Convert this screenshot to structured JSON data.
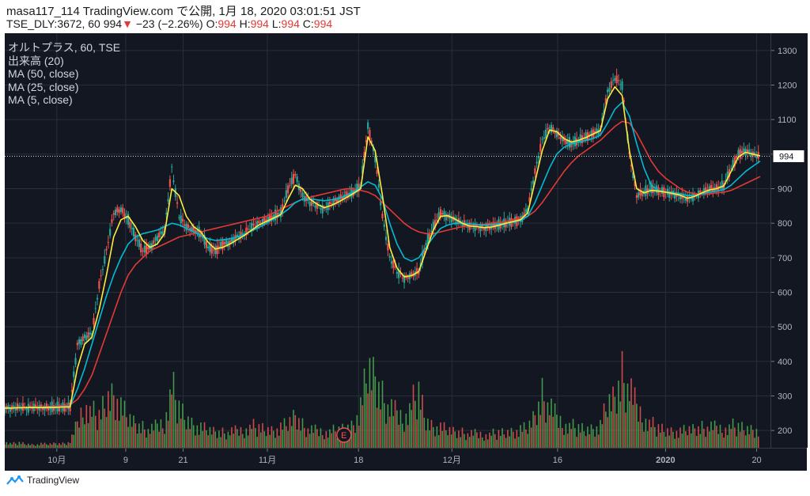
{
  "header": {
    "line1": "masa117_114 TradingView.com で公開, 1月 18, 2020 03:01:51 JST",
    "symbol": "TSE_DLY:3672, 60",
    "price": "994",
    "change_arrow": "▼",
    "change": "−23 (−2.26%)",
    "o_label": "O:",
    "o_value": "994",
    "h_label": "H:",
    "h_value": "994",
    "l_label": "L:",
    "l_value": "994",
    "c_label": "C:",
    "c_value": "994"
  },
  "legend": {
    "title": "オルトプラス, 60, TSE",
    "volume": "出来高 (20)",
    "ma50": "MA (50, close)",
    "ma25": "MA (25, close)",
    "ma5": "MA (5, close)"
  },
  "footer": {
    "brand": "TradingView"
  },
  "earnings_marker": "E",
  "last_price_label": "994",
  "colors": {
    "background": "#131722",
    "grid": "#2a2e39",
    "up": "#26a69a",
    "down": "#ef5350",
    "vol_up": "#4caf50",
    "vol_down": "#ef5350",
    "ma50": "#e53935",
    "ma25": "#00bcd4",
    "ma5": "#ffeb3b"
  },
  "chart_data": {
    "type": "candlestick",
    "title": "オルトプラス, 60, TSE",
    "x_ticks": [
      "10月",
      "9",
      "21",
      "11月",
      "18",
      "12月",
      "16",
      "2020",
      "20"
    ],
    "y_ticks": [
      200,
      300,
      400,
      500,
      600,
      700,
      800,
      900,
      1000,
      1100,
      1200,
      1300
    ],
    "ylim": [
      150,
      1350
    ],
    "last_price": 994,
    "price_path": [
      265,
      265,
      268,
      265,
      268,
      266,
      266,
      268,
      267,
      270,
      450,
      470,
      480,
      620,
      720,
      830,
      840,
      810,
      760,
      720,
      730,
      760,
      780,
      960,
      820,
      790,
      780,
      770,
      730,
      720,
      740,
      745,
      760,
      770,
      790,
      800,
      810,
      820,
      830,
      900,
      940,
      880,
      860,
      850,
      840,
      860,
      870,
      880,
      890,
      910,
      1080,
      990,
      820,
      700,
      660,
      640,
      650,
      660,
      740,
      790,
      830,
      820,
      810,
      800,
      790,
      790,
      785,
      790,
      795,
      800,
      805,
      810,
      840,
      950,
      1040,
      1080,
      1060,
      1040,
      1030,
      1040,
      1050,
      1060,
      1070,
      1180,
      1220,
      1200,
      1000,
      880,
      890,
      900,
      895,
      890,
      885,
      880,
      870,
      880,
      890,
      900,
      900,
      910,
      960,
      1000,
      1010,
      1000,
      994
    ],
    "series": [
      {
        "name": "MA (50, close)",
        "color": "#e53935",
        "values": [
          265,
          265,
          266,
          266,
          267,
          268,
          269,
          270,
          272,
          274,
          290,
          320,
          360,
          420,
          480,
          540,
          600,
          650,
          680,
          700,
          720,
          730,
          740,
          750,
          760,
          765,
          770,
          775,
          780,
          785,
          790,
          795,
          800,
          805,
          810,
          815,
          820,
          830,
          840,
          850,
          860,
          870,
          875,
          880,
          885,
          890,
          895,
          900,
          900,
          895,
          890,
          880,
          860,
          840,
          820,
          800,
          785,
          775,
          770,
          770,
          775,
          780,
          785,
          790,
          792,
          795,
          797,
          800,
          802,
          805,
          810,
          815,
          820,
          835,
          860,
          890,
          920,
          950,
          975,
          995,
          1010,
          1025,
          1040,
          1060,
          1080,
          1095,
          1090,
          1060,
          1020,
          980,
          950,
          930,
          915,
          900,
          890,
          885,
          885,
          885,
          888,
          890,
          895,
          905,
          915,
          925,
          935
        ]
      },
      {
        "name": "MA (25, close)",
        "color": "#00bcd4",
        "values": [
          265,
          265,
          266,
          266,
          267,
          267,
          268,
          268,
          269,
          270,
          320,
          380,
          450,
          520,
          590,
          650,
          700,
          740,
          760,
          770,
          775,
          780,
          790,
          800,
          795,
          785,
          775,
          765,
          755,
          750,
          752,
          755,
          760,
          768,
          778,
          788,
          800,
          812,
          825,
          840,
          860,
          870,
          870,
          868,
          865,
          868,
          872,
          880,
          890,
          905,
          920,
          910,
          870,
          800,
          740,
          700,
          690,
          700,
          730,
          760,
          785,
          795,
          800,
          800,
          798,
          796,
          795,
          796,
          798,
          800,
          803,
          808,
          820,
          860,
          910,
          960,
          1000,
          1020,
          1030,
          1035,
          1040,
          1045,
          1055,
          1090,
          1130,
          1150,
          1110,
          1030,
          960,
          910,
          895,
          890,
          888,
          885,
          880,
          880,
          885,
          890,
          893,
          897,
          910,
          930,
          950,
          965,
          980
        ]
      },
      {
        "name": "MA (5, close)",
        "color": "#ffeb3b",
        "values": [
          265,
          265,
          266,
          266,
          267,
          266,
          267,
          267,
          268,
          268,
          380,
          450,
          470,
          550,
          650,
          760,
          810,
          820,
          790,
          750,
          730,
          740,
          770,
          900,
          880,
          820,
          790,
          775,
          745,
          725,
          730,
          740,
          752,
          765,
          780,
          795,
          805,
          815,
          825,
          870,
          910,
          900,
          870,
          855,
          845,
          852,
          862,
          874,
          886,
          900,
          1050,
          1010,
          880,
          730,
          670,
          645,
          648,
          660,
          720,
          780,
          820,
          822,
          812,
          800,
          792,
          790,
          787,
          789,
          794,
          800,
          805,
          810,
          830,
          920,
          1010,
          1070,
          1065,
          1045,
          1035,
          1040,
          1048,
          1058,
          1068,
          1160,
          1195,
          1170,
          1010,
          900,
          888,
          895,
          893,
          890,
          886,
          881,
          872,
          878,
          888,
          896,
          900,
          908,
          950,
          992,
          1005,
          1000,
          995
        ]
      }
    ],
    "volume": [
      30,
      20,
      25,
      20,
      15,
      20,
      18,
      22,
      20,
      30,
      120,
      220,
      180,
      160,
      250,
      280,
      200,
      150,
      120,
      100,
      90,
      110,
      130,
      310,
      200,
      150,
      120,
      100,
      90,
      80,
      75,
      80,
      85,
      90,
      110,
      100,
      95,
      90,
      100,
      120,
      160,
      110,
      90,
      85,
      80,
      85,
      90,
      100,
      120,
      200,
      390,
      350,
      250,
      200,
      170,
      150,
      220,
      280,
      140,
      110,
      100,
      90,
      80,
      75,
      70,
      70,
      65,
      70,
      75,
      80,
      85,
      90,
      100,
      160,
      260,
      210,
      150,
      120,
      110,
      100,
      95,
      100,
      110,
      220,
      250,
      360,
      300,
      200,
      150,
      120,
      100,
      90,
      85,
      80,
      90,
      95,
      100,
      105,
      100,
      95,
      110,
      105,
      100,
      95,
      90
    ]
  }
}
